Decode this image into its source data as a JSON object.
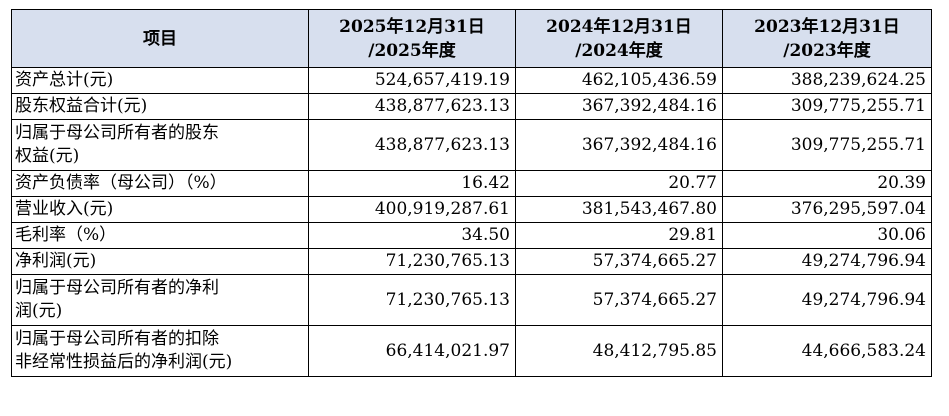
{
  "header": {
    "item": "项目",
    "columns": [
      {
        "line1": "2025年12月31日",
        "line2": "/2025年度"
      },
      {
        "line1": "2024年12月31日",
        "line2": "/2024年度"
      },
      {
        "line1": "2023年12月31日",
        "line2": "/2023年度"
      }
    ]
  },
  "rows": [
    {
      "label": [
        "资产总计(元)"
      ],
      "values": [
        "524,657,419.19",
        "462,105,436.59",
        "388,239,624.25"
      ]
    },
    {
      "label": [
        "股东权益合计(元)"
      ],
      "values": [
        "438,877,623.13",
        "367,392,484.16",
        "309,775,255.71"
      ]
    },
    {
      "label": [
        "归属于母公司所有者的股东",
        "权益(元)"
      ],
      "values": [
        "438,877,623.13",
        "367,392,484.16",
        "309,775,255.71"
      ]
    },
    {
      "label": [
        "资产负债率（母公司）（%）"
      ],
      "values": [
        "16.42",
        "20.77",
        "20.39"
      ]
    },
    {
      "label": [
        "营业收入(元)"
      ],
      "values": [
        "400,919,287.61",
        "381,543,467.80",
        "376,295,597.04"
      ]
    },
    {
      "label": [
        "毛利率（%）"
      ],
      "values": [
        "34.50",
        "29.81",
        "30.06"
      ]
    },
    {
      "label": [
        "净利润(元)"
      ],
      "values": [
        "71,230,765.13",
        "57,374,665.27",
        "49,274,796.94"
      ]
    },
    {
      "label": [
        "归属于母公司所有者的净利",
        "润(元)"
      ],
      "values": [
        "71,230,765.13",
        "57,374,665.27",
        "49,274,796.94"
      ]
    },
    {
      "label": [
        "归属于母公司所有者的扣除",
        "非经常性损益后的净利润(元)"
      ],
      "values": [
        "66,414,021.97",
        "48,412,795.85",
        "44,666,583.24"
      ]
    }
  ],
  "colors": {
    "header_background": "#d7dfee",
    "border": "#000000"
  }
}
